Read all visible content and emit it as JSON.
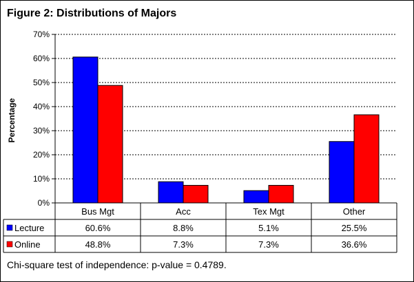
{
  "chart_data": {
    "type": "bar",
    "title": "Figure 2: Distributions of Majors",
    "xlabel": "",
    "ylabel": "Percentage",
    "ylim": [
      0,
      70
    ],
    "yticks": [
      "0%",
      "10%",
      "20%",
      "30%",
      "40%",
      "50%",
      "60%",
      "70%"
    ],
    "grid": true,
    "categories": [
      "Bus Mgt",
      "Acc",
      "Tex Mgt",
      "Other"
    ],
    "series": [
      {
        "name": "Lecture",
        "color": "#0000ff",
        "values": [
          60.6,
          8.8,
          5.1,
          25.5
        ],
        "labels": [
          "60.6%",
          "8.8%",
          "5.1%",
          "25.5%"
        ]
      },
      {
        "name": "Online",
        "color": "#ff0000",
        "values": [
          48.8,
          7.3,
          7.3,
          36.6
        ],
        "labels": [
          "48.8%",
          "7.3%",
          "7.3%",
          "36.6%"
        ]
      }
    ],
    "footnote": "Chi-square test of independence:  p-value = 0.4789."
  }
}
